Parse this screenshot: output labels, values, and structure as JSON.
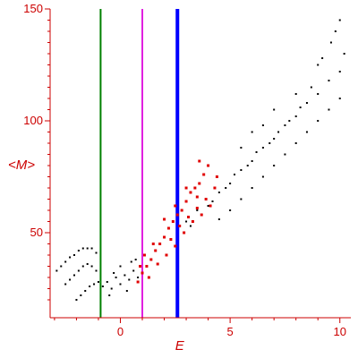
{
  "chart_data": {
    "type": "scatter",
    "title": "",
    "xlabel": "E",
    "ylabel": "<M>",
    "xlim": [
      -3.2,
      10.5
    ],
    "ylim": [
      12,
      150
    ],
    "x_ticks": [
      0,
      5,
      10
    ],
    "x_tick_labels": [
      "0",
      "5",
      "10"
    ],
    "y_ticks": [
      50,
      100,
      150
    ],
    "y_tick_labels": [
      "50",
      "100",
      "150"
    ],
    "grid": false,
    "legend": "none",
    "colors": {
      "axis": "#cc0000",
      "black_points": "#000000",
      "red_points": "#e00000",
      "green_line": "#008000",
      "magenta_line": "#e020e0",
      "blue_line": "#0000ff"
    },
    "vertical_lines": [
      {
        "x": -0.9,
        "color": "#008000",
        "width": "thin"
      },
      {
        "x": 1.0,
        "color": "#e020e0",
        "width": "thin"
      },
      {
        "x": 2.6,
        "color": "#0000ff",
        "width": "thick"
      }
    ],
    "series": [
      {
        "color": "#000000",
        "marker": "small dot",
        "values": [
          [
            -2.9,
            33
          ],
          [
            -2.7,
            35
          ],
          [
            -2.5,
            37
          ],
          [
            -2.3,
            39
          ],
          [
            -2.1,
            40
          ],
          [
            -1.9,
            42
          ],
          [
            -1.7,
            43
          ],
          [
            -1.5,
            43
          ],
          [
            -1.3,
            43
          ],
          [
            -1.1,
            41
          ],
          [
            -2.5,
            27
          ],
          [
            -2.3,
            29
          ],
          [
            -2.1,
            31
          ],
          [
            -1.9,
            33
          ],
          [
            -1.7,
            35
          ],
          [
            -1.5,
            36
          ],
          [
            -1.3,
            35
          ],
          [
            -1.1,
            33
          ],
          [
            -2.0,
            20
          ],
          [
            -1.8,
            22
          ],
          [
            -1.6,
            24
          ],
          [
            -1.4,
            26
          ],
          [
            -1.2,
            27
          ],
          [
            -1.0,
            28
          ],
          [
            -0.8,
            26
          ],
          [
            -0.6,
            28
          ],
          [
            -0.4,
            25
          ],
          [
            -0.2,
            30
          ],
          [
            0.0,
            27
          ],
          [
            0.2,
            31
          ],
          [
            0.4,
            29
          ],
          [
            0.6,
            33
          ],
          [
            0.8,
            30
          ],
          [
            -0.5,
            22
          ],
          [
            0.0,
            35
          ],
          [
            0.5,
            37
          ],
          [
            -0.3,
            32
          ],
          [
            0.3,
            24
          ],
          [
            0.7,
            38
          ],
          [
            3.0,
            55
          ],
          [
            3.5,
            60
          ],
          [
            4.0,
            62
          ],
          [
            4.5,
            68
          ],
          [
            5.0,
            72
          ],
          [
            5.5,
            78
          ],
          [
            6.0,
            82
          ],
          [
            6.5,
            88
          ],
          [
            7.0,
            92
          ],
          [
            7.5,
            98
          ],
          [
            8.0,
            102
          ],
          [
            8.5,
            108
          ],
          [
            9.0,
            112
          ],
          [
            9.5,
            118
          ],
          [
            10.0,
            122
          ],
          [
            10.2,
            130
          ],
          [
            9.8,
            140
          ],
          [
            9.2,
            128
          ],
          [
            8.7,
            115
          ],
          [
            8.2,
            106
          ],
          [
            7.7,
            100
          ],
          [
            7.2,
            95
          ],
          [
            6.8,
            90
          ],
          [
            6.2,
            86
          ],
          [
            5.8,
            80
          ],
          [
            5.2,
            76
          ],
          [
            4.8,
            70
          ],
          [
            4.2,
            64
          ],
          [
            3.7,
            58
          ],
          [
            3.2,
            53
          ],
          [
            4.5,
            56
          ],
          [
            5.0,
            60
          ],
          [
            5.5,
            65
          ],
          [
            6.0,
            70
          ],
          [
            6.5,
            75
          ],
          [
            7.0,
            80
          ],
          [
            7.5,
            85
          ],
          [
            8.0,
            90
          ],
          [
            8.5,
            95
          ],
          [
            9.0,
            100
          ],
          [
            9.5,
            105
          ],
          [
            10.0,
            110
          ],
          [
            6.0,
            95
          ],
          [
            7.0,
            105
          ],
          [
            8.0,
            112
          ],
          [
            9.0,
            125
          ],
          [
            10.0,
            145
          ],
          [
            9.6,
            135
          ],
          [
            5.5,
            88
          ],
          [
            6.5,
            98
          ]
        ]
      },
      {
        "color": "#e00000",
        "marker": "small square",
        "values": [
          [
            0.8,
            28
          ],
          [
            1.0,
            32
          ],
          [
            1.2,
            35
          ],
          [
            1.4,
            38
          ],
          [
            1.6,
            42
          ],
          [
            1.8,
            45
          ],
          [
            2.0,
            48
          ],
          [
            2.2,
            52
          ],
          [
            2.4,
            55
          ],
          [
            2.6,
            58
          ],
          [
            2.8,
            60
          ],
          [
            3.0,
            64
          ],
          [
            3.2,
            68
          ],
          [
            3.4,
            70
          ],
          [
            3.6,
            72
          ],
          [
            3.8,
            76
          ],
          [
            4.0,
            80
          ],
          [
            1.3,
            30
          ],
          [
            1.7,
            36
          ],
          [
            2.1,
            40
          ],
          [
            2.5,
            44
          ],
          [
            2.9,
            50
          ],
          [
            3.3,
            55
          ],
          [
            3.7,
            58
          ],
          [
            4.1,
            62
          ],
          [
            1.5,
            45
          ],
          [
            2.0,
            56
          ],
          [
            2.5,
            62
          ],
          [
            3.0,
            70
          ],
          [
            3.5,
            66
          ],
          [
            2.3,
            47
          ],
          [
            2.7,
            53
          ],
          [
            3.1,
            57
          ],
          [
            3.5,
            61
          ],
          [
            3.9,
            65
          ],
          [
            1.1,
            40
          ],
          [
            0.9,
            35
          ],
          [
            4.3,
            70
          ],
          [
            4.4,
            75
          ],
          [
            3.6,
            82
          ]
        ]
      }
    ]
  }
}
